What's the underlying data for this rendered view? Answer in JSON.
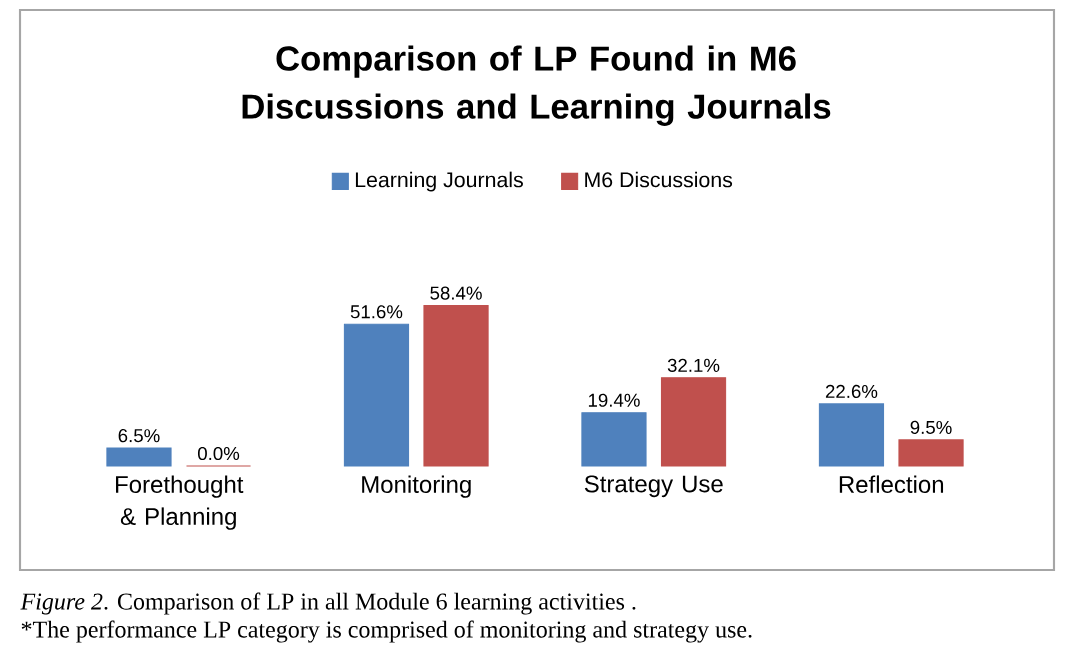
{
  "chart_data": {
    "type": "bar",
    "title": "Comparison of LP Found in M6 Discussions and Learning Journals",
    "categories": [
      "Forethought & Planning",
      "Monitoring",
      "Strategy Use",
      "Reflection"
    ],
    "series": [
      {
        "name": "Learning Journals",
        "color": "#4f81bd",
        "values": [
          6.5,
          51.6,
          19.4,
          22.6
        ],
        "value_labels": [
          "6.5%",
          "51.6%",
          "19.4%",
          "22.6%"
        ]
      },
      {
        "name": "M6 Discussions",
        "color": "#c0504d",
        "values": [
          0.0,
          58.4,
          32.1,
          9.5
        ],
        "value_labels": [
          "0.0%",
          "58.4%",
          "32.1%",
          "9.5%"
        ]
      }
    ],
    "legend": "top",
    "annotations": [
      "*Figure 2*.  Comparison of LP in  all Module 6 learning activities .",
      "*The performance LP category is comprised of monitoring and strategy use."
    ]
  }
}
